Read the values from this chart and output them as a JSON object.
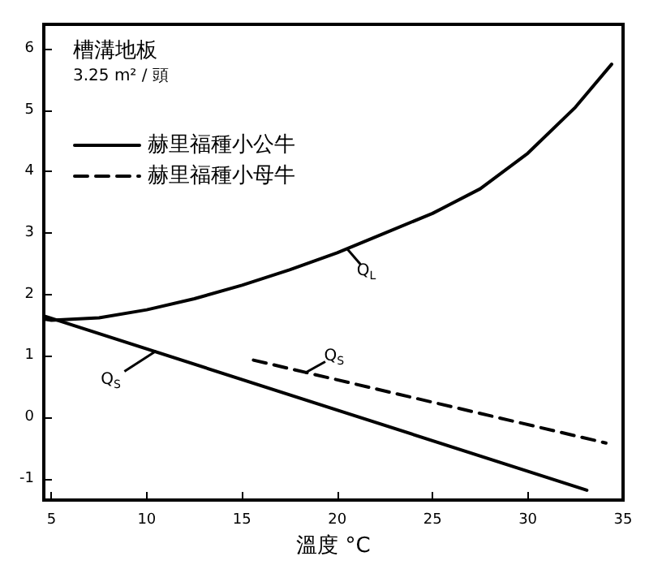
{
  "chart_data": {
    "type": "line",
    "title": "槽溝地板",
    "subtitle": "3.25 m² / 頭",
    "xlabel": "溫度 °C",
    "xlim": [
      4.6,
      35
    ],
    "xticks": [
      5,
      10,
      15,
      20,
      25,
      30,
      35
    ],
    "ylim": [
      -1.35,
      6.4
    ],
    "yticks": [
      -1,
      0,
      1,
      2,
      3,
      4,
      5,
      6
    ],
    "grid": false,
    "legend": "top left",
    "series": [
      {
        "name": "赫里福種小公牛",
        "color": "#000000",
        "line_style": "solid",
        "x": [
          4.6,
          5,
          7.5,
          10,
          12.5,
          15,
          17.5,
          20,
          22.5,
          25,
          27.5,
          30,
          32.5,
          34.4
        ],
        "values": [
          1.6,
          1.58,
          1.62,
          1.75,
          1.93,
          2.15,
          2.4,
          2.68,
          3.0,
          3.32,
          3.72,
          4.3,
          5.05,
          5.75
        ]
      },
      {
        "name": null,
        "color": "#000000",
        "line_style": "solid",
        "x": [
          4.6,
          33.1
        ],
        "values": [
          1.65,
          -1.19
        ]
      },
      {
        "name": "赫里福種小母牛",
        "color": "#000000",
        "line_style": "dashed",
        "x": [
          15.6,
          34.1
        ],
        "values": [
          0.93,
          -0.42
        ]
      }
    ],
    "annotations": [
      {
        "text": "Q$_{L}$",
        "x": 20.5,
        "y": 2.75
      },
      {
        "text": "Q$_{S}$",
        "x": 10.5,
        "y": 1.08
      },
      {
        "text": "Q$_{S}$",
        "x": 18.3,
        "y": 0.72
      }
    ]
  }
}
